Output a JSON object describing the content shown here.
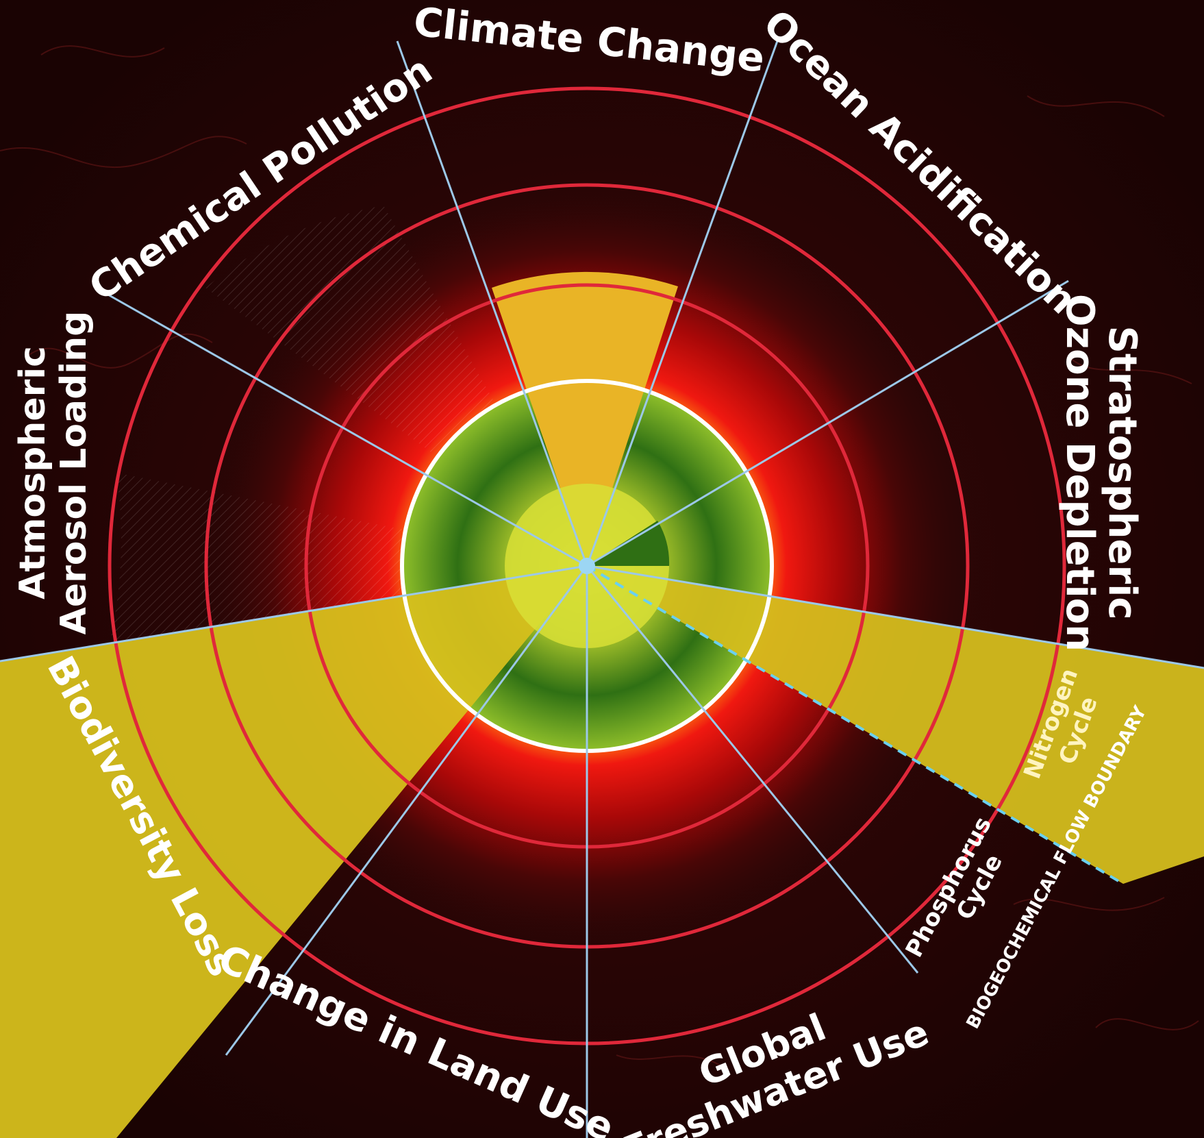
{
  "diagram": {
    "title": "",
    "boundaries": [
      {
        "key": "climate",
        "label": "Climate Change",
        "status": "exceeded"
      },
      {
        "key": "ocean",
        "label": "Ocean Acidification",
        "status": "within"
      },
      {
        "key": "ozone",
        "label": "Stratospheric Ozone Depletion",
        "status": "within"
      },
      {
        "key": "nitrogen",
        "label": "Nitrogen Cycle",
        "status": "exceeded"
      },
      {
        "key": "phosphorus",
        "label": "Phosphorus Cycle",
        "status": "within"
      },
      {
        "key": "freshwater",
        "label": "Global Freshwater Use",
        "status": "within"
      },
      {
        "key": "landuse",
        "label": "Change in Land Use",
        "status": "within"
      },
      {
        "key": "biodiversity",
        "label": "Biodiversity Loss",
        "status": "exceeded"
      },
      {
        "key": "aerosol",
        "label": "Atmospheric Aerosol Loading",
        "status": "not quantified"
      },
      {
        "key": "chemical",
        "label": "Chemical Pollution",
        "status": "not quantified"
      }
    ],
    "labels": {
      "climate": "Climate Change",
      "ocean": "Ocean Acidification",
      "ozone_line1": "Stratospheric",
      "ozone_line2": "Ozone Depletion",
      "nitrogen_line1": "Nitrogen",
      "nitrogen_line2": "Cycle",
      "phosphorus_line1": "Phosphorus",
      "phosphorus_line2": "Cycle",
      "biogeo": "BIOGEOCHEMICAL FLOW BOUNDARY",
      "freshwater_line1": "Global",
      "freshwater_line2": "Freshwater Use",
      "landuse": "Change in Land Use",
      "biodiversity": "Biodiversity Loss",
      "aerosol_line1": "Atmospheric",
      "aerosol_line2": "Aerosol Loading",
      "chemical": "Chemical Pollution"
    },
    "colors": {
      "background": "#2a0505",
      "danger_red": "#d81010",
      "ring_red": "#e0283a",
      "safe_green": "#3f8a1c",
      "exceeded_yellow": "#d8c21e",
      "spoke_blue": "#9cc8e8",
      "boundary_white": "#ffffff"
    }
  }
}
